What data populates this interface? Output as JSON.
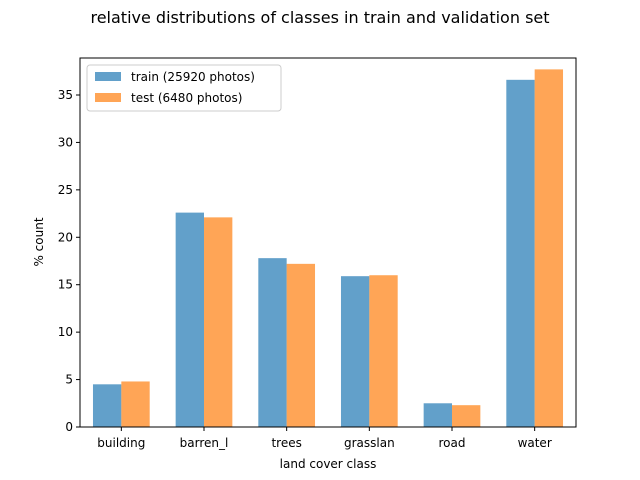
{
  "chart_data": {
    "type": "bar",
    "title": "relative distributions of classes in train and validation set",
    "xlabel": "land cover class",
    "ylabel": "% count",
    "categories": [
      "building",
      "barren_l",
      "trees",
      "grasslan",
      "road",
      "water"
    ],
    "series": [
      {
        "name": "train (25920 photos)",
        "color": "#1f77b4",
        "opacity": 0.7,
        "values": [
          4.5,
          22.6,
          17.8,
          15.9,
          2.5,
          36.6
        ]
      },
      {
        "name": "test (6480 photos)",
        "color": "#ff7f0e",
        "opacity": 0.7,
        "values": [
          4.8,
          22.1,
          17.2,
          16.0,
          2.3,
          37.7
        ]
      }
    ],
    "ylim": [
      0,
      38.9
    ],
    "yticks": [
      0,
      5,
      10,
      15,
      20,
      25,
      30,
      35
    ],
    "grid": false,
    "legend": "top-left"
  }
}
